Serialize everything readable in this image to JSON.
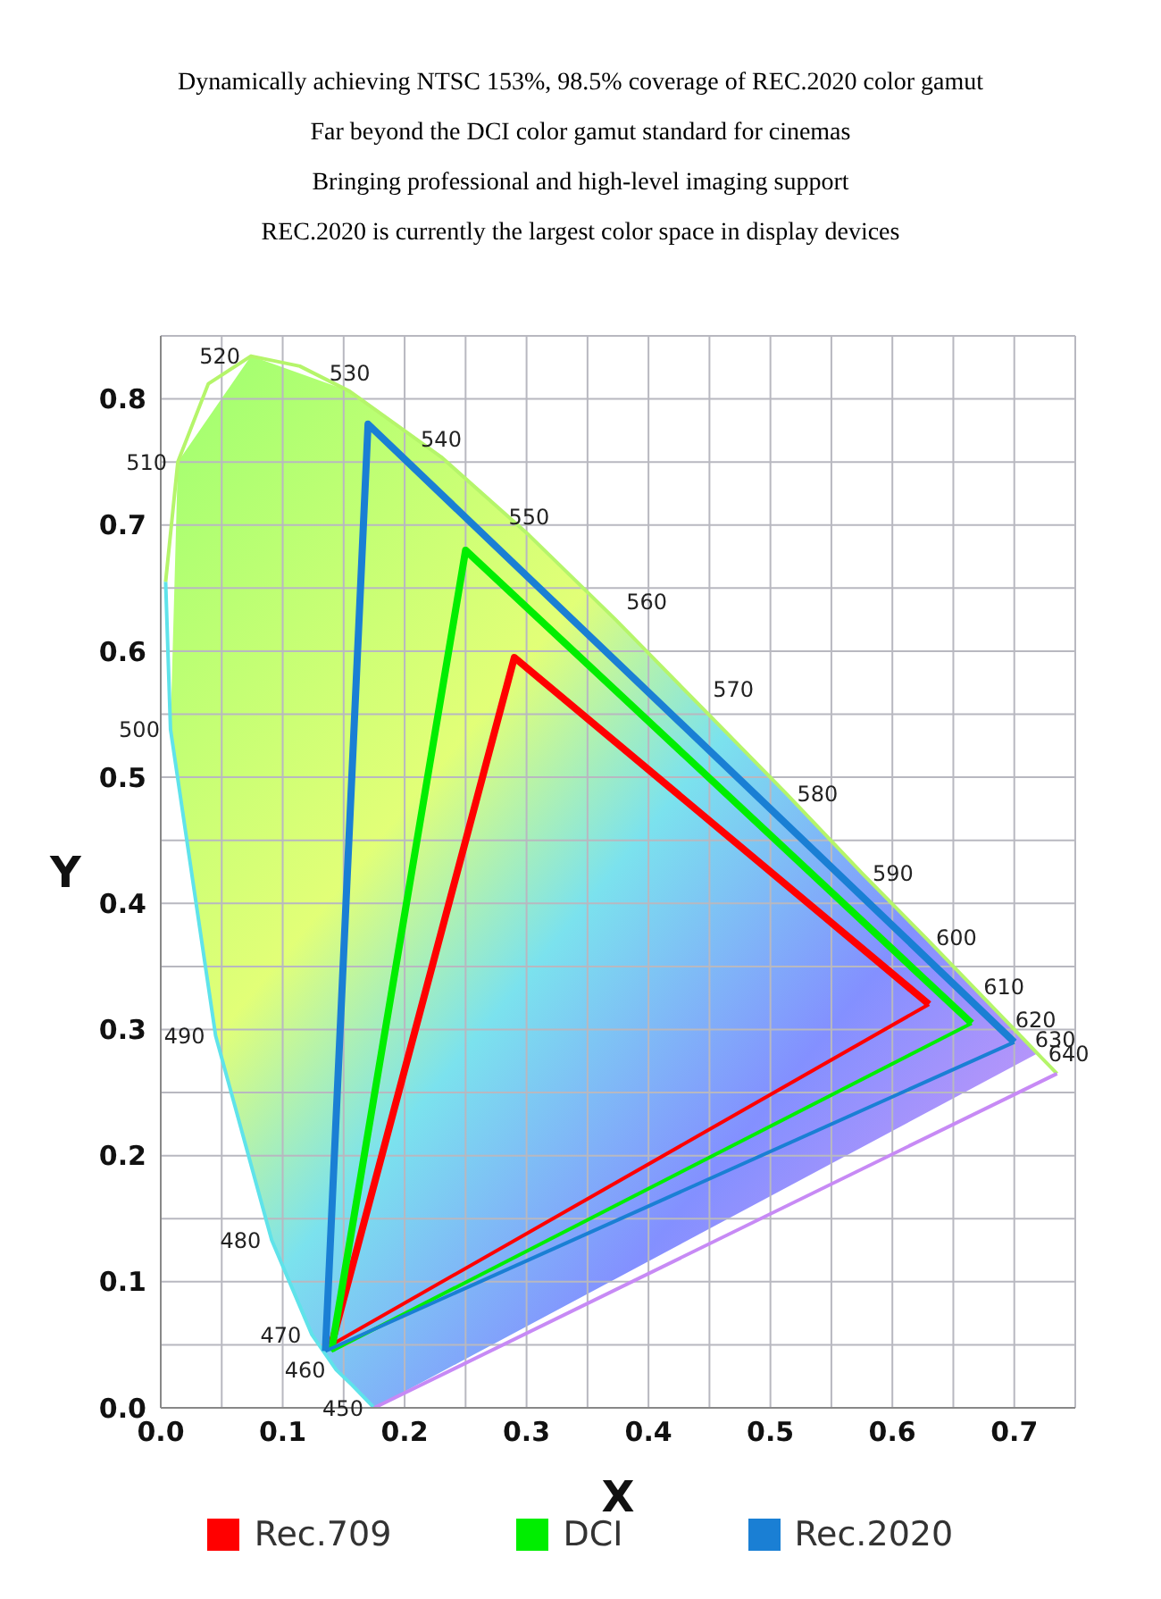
{
  "chart_data": {
    "type": "line",
    "title": "Dynamically achieving NTSC 153%, 98.5% coverage of REC.2020 color gamut",
    "subtitle": "Far beyond the DCI color gamut standard for cinemas\nBringing professional and high-level imaging support\nREC.2020 is currently the largest color space in display devices",
    "xlabel": "X",
    "ylabel": "Y",
    "xlim": [
      0,
      0.75
    ],
    "ylim": [
      0,
      0.85
    ],
    "xticks": [
      {
        "value": 0,
        "label": "0.0"
      },
      {
        "value": 0.05,
        "label": null
      },
      0.1,
      {
        "value": 0.15,
        "label": null
      },
      0.2,
      {
        "value": 0.25,
        "label": null
      },
      0.3,
      {
        "value": 0.35,
        "label": null
      },
      0.4,
      {
        "value": 0.45,
        "label": null
      },
      0.5,
      {
        "value": 0.55,
        "label": null
      },
      0.6,
      {
        "value": 0.65,
        "label": null
      },
      0.7,
      {
        "value": 0.75,
        "label": null
      }
    ],
    "yticks": [
      {
        "value": 0,
        "label": "0.0"
      },
      {
        "value": 0.05,
        "label": null
      },
      0.1,
      {
        "value": 0.15,
        "label": null
      },
      0.2,
      {
        "value": 0.25,
        "label": null
      },
      0.3,
      {
        "value": 0.35,
        "label": null
      },
      0.4,
      {
        "value": 0.45,
        "label": null
      },
      0.5,
      {
        "value": 0.55,
        "label": null
      },
      0.6,
      {
        "value": 0.65,
        "label": null
      },
      0.7,
      {
        "value": 0.75,
        "label": null
      },
      0.8
    ],
    "grid": true,
    "legend": "bottom",
    "series": [
      {
        "color": "#5fe3ea",
        "x": [
          0.004,
          0.008,
          0.045,
          0.091,
          0.124,
          0.144,
          0.157,
          0.175
        ],
        "values": [
          0.655,
          0.538,
          0.295,
          0.133,
          0.058,
          0.03,
          0.018,
          0
        ]
      },
      {
        "color": "#b5f56a",
        "x": [
          0.004,
          0.014,
          0.039,
          0.074,
          0.114,
          0.155,
          0.23,
          0.302,
          0.373,
          0.444,
          0.513,
          0.575,
          0.627,
          0.666,
          0.692,
          0.708,
          0.719,
          0.735
        ],
        "values": [
          0.655,
          0.75,
          0.812,
          0.834,
          0.826,
          0.806,
          0.754,
          0.692,
          0.625,
          0.555,
          0.487,
          0.424,
          0.373,
          0.334,
          0.308,
          0.292,
          0.281,
          0.265
        ]
      },
      {
        "color": "#c78af5",
        "x": [
          0.175,
          0.735
        ],
        "values": [
          0,
          0.265
        ]
      },
      {
        "name": "Rec.709",
        "color": "#ff0000",
        "x": [
          0.14,
          0.29,
          0.63
        ],
        "values": [
          0.05,
          0.595,
          0.32
        ]
      },
      {
        "color": "#ff0000",
        "x": [
          0.14,
          0.63
        ],
        "values": [
          0.05,
          0.32
        ]
      },
      {
        "name": "DCI",
        "color": "#00ee00",
        "x": [
          0.14,
          0.25,
          0.665
        ],
        "values": [
          0.045,
          0.68,
          0.305
        ]
      },
      {
        "color": "#00ee00",
        "x": [
          0.14,
          0.665
        ],
        "values": [
          0.045,
          0.305
        ]
      },
      {
        "name": "Rec.2020",
        "color": "#1a7fd4",
        "x": [
          0.135,
          0.17,
          0.7
        ],
        "values": [
          0.045,
          0.78,
          0.29
        ]
      },
      {
        "color": "#1a7fd4",
        "x": [
          0.135,
          0.7
        ],
        "values": [
          0.045,
          0.29
        ]
      }
    ],
    "annotations": [
      {
        "text": "450",
        "x": 0.175,
        "y": 0
      },
      {
        "text": "460",
        "x": 0.144,
        "y": 0.03
      },
      {
        "text": "470",
        "x": 0.124,
        "y": 0.058
      },
      {
        "text": "480",
        "x": 0.091,
        "y": 0.133
      },
      {
        "text": "490",
        "x": 0.045,
        "y": 0.295
      },
      {
        "text": "500",
        "x": 0.008,
        "y": 0.538
      },
      {
        "text": "510",
        "x": 0.014,
        "y": 0.75
      },
      {
        "text": "520",
        "x": 0.074,
        "y": 0.834
      },
      {
        "text": "530",
        "x": 0.155,
        "y": 0.806
      },
      {
        "text": "540",
        "x": 0.23,
        "y": 0.754
      },
      {
        "text": "550",
        "x": 0.302,
        "y": 0.692
      },
      {
        "text": "560",
        "x": 0.373,
        "y": 0.625
      },
      {
        "text": "570",
        "x": 0.444,
        "y": 0.555
      },
      {
        "text": "580",
        "x": 0.513,
        "y": 0.487
      },
      {
        "text": "590",
        "x": 0.575,
        "y": 0.424
      },
      {
        "text": "600",
        "x": 0.627,
        "y": 0.373
      },
      {
        "text": "610",
        "x": 0.666,
        "y": 0.334
      },
      {
        "text": "620",
        "x": 0.692,
        "y": 0.308
      },
      {
        "text": "630",
        "x": 0.708,
        "y": 0.292
      },
      {
        "text": "640",
        "x": 0.719,
        "y": 0.281
      }
    ]
  }
}
